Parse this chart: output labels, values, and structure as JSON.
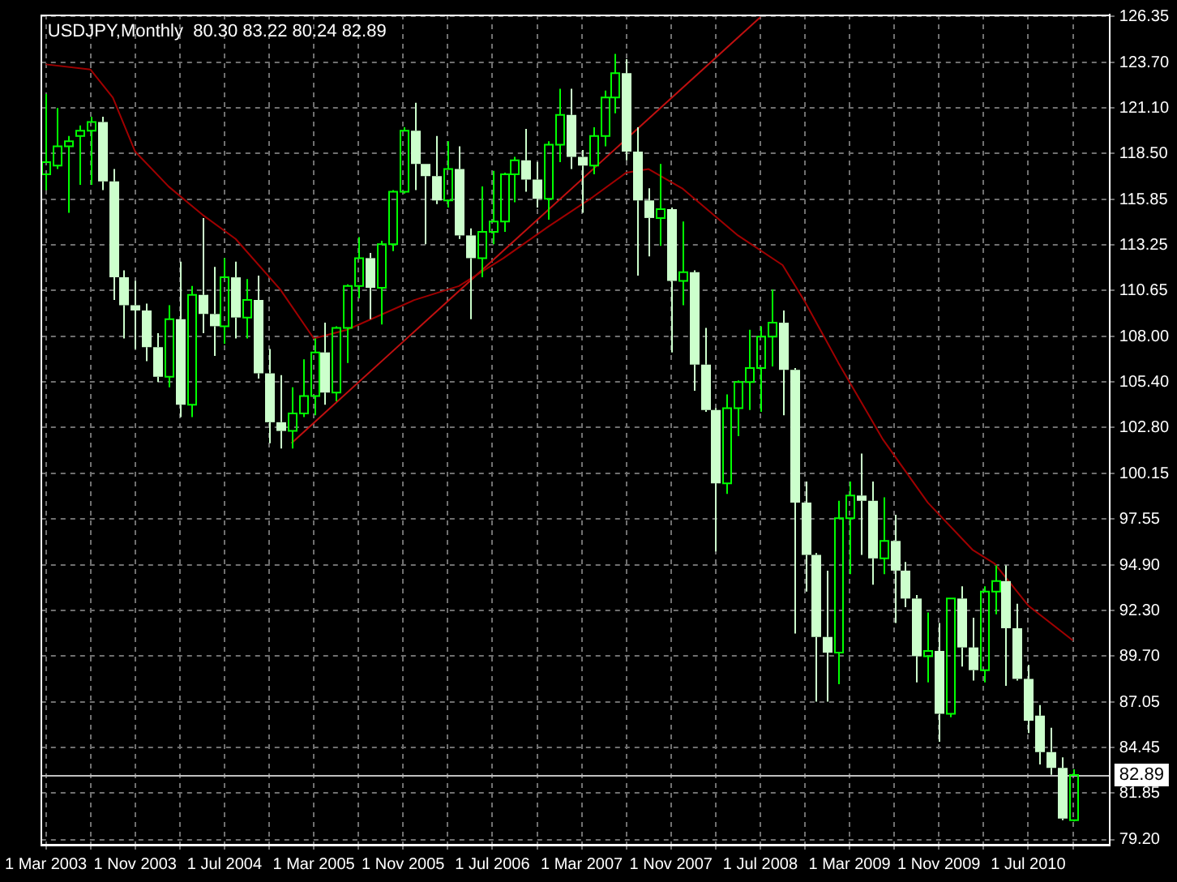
{
  "chart_data": {
    "type": "candlestick",
    "title": "USDJPY,Monthly  80.30 83.22 80.24 82.89",
    "x": [
      "2003-03",
      "2003-04",
      "2003-05",
      "2003-06",
      "2003-07",
      "2003-08",
      "2003-09",
      "2003-10",
      "2003-11",
      "2003-12",
      "2004-01",
      "2004-02",
      "2004-03",
      "2004-04",
      "2004-05",
      "2004-06",
      "2004-07",
      "2004-08",
      "2004-09",
      "2004-10",
      "2004-11",
      "2004-12",
      "2005-01",
      "2005-02",
      "2005-03",
      "2005-04",
      "2005-05",
      "2005-06",
      "2005-07",
      "2005-08",
      "2005-09",
      "2005-10",
      "2005-11",
      "2005-12",
      "2006-01",
      "2006-02",
      "2006-03",
      "2006-04",
      "2006-05",
      "2006-06",
      "2006-07",
      "2006-08",
      "2006-09",
      "2006-10",
      "2006-11",
      "2006-12",
      "2007-01",
      "2007-02",
      "2007-03",
      "2007-04",
      "2007-05",
      "2007-06",
      "2007-07",
      "2007-08",
      "2007-09",
      "2007-10",
      "2007-11",
      "2007-12",
      "2008-01",
      "2008-02",
      "2008-03",
      "2008-04",
      "2008-05",
      "2008-06",
      "2008-07",
      "2008-08",
      "2008-09",
      "2008-10",
      "2008-11",
      "2008-12",
      "2009-01",
      "2009-02",
      "2009-03",
      "2009-04",
      "2009-05",
      "2009-06",
      "2009-07",
      "2009-08",
      "2009-09",
      "2009-10",
      "2009-11",
      "2009-12",
      "2010-01",
      "2010-02",
      "2010-03",
      "2010-04",
      "2010-05",
      "2010-06",
      "2010-07",
      "2010-08",
      "2010-09",
      "2010-10",
      "2010-11"
    ],
    "ohlc": [
      [
        117.3,
        121.9,
        116.4,
        118.0
      ],
      [
        117.8,
        121.1,
        117.6,
        118.9
      ],
      [
        118.9,
        119.5,
        115.1,
        119.2
      ],
      [
        119.5,
        120.1,
        116.7,
        119.8
      ],
      [
        119.8,
        120.6,
        116.7,
        120.3
      ],
      [
        120.3,
        120.6,
        116.4,
        116.9
      ],
      [
        116.9,
        117.6,
        110.1,
        111.4
      ],
      [
        111.4,
        111.8,
        107.9,
        109.8
      ],
      [
        109.8,
        111.2,
        107.3,
        109.5
      ],
      [
        109.5,
        109.9,
        106.6,
        107.4
      ],
      [
        107.4,
        108.2,
        105.4,
        105.7
      ],
      [
        105.7,
        109.8,
        105.1,
        109.0
      ],
      [
        109.0,
        112.3,
        103.4,
        104.1
      ],
      [
        104.1,
        110.9,
        103.4,
        110.4
      ],
      [
        110.4,
        114.8,
        108.2,
        109.3
      ],
      [
        109.3,
        112.0,
        106.9,
        108.6
      ],
      [
        108.6,
        112.5,
        107.6,
        111.4
      ],
      [
        111.4,
        112.3,
        107.9,
        109.1
      ],
      [
        109.1,
        111.3,
        107.9,
        110.1
      ],
      [
        110.1,
        111.5,
        105.6,
        105.9
      ],
      [
        105.9,
        107.3,
        101.9,
        103.1
      ],
      [
        103.1,
        105.8,
        101.6,
        102.6
      ],
      [
        102.6,
        105.1,
        101.6,
        103.6
      ],
      [
        103.6,
        106.7,
        103.4,
        104.6
      ],
      [
        104.6,
        107.9,
        103.5,
        107.1
      ],
      [
        107.1,
        108.8,
        104.1,
        104.8
      ],
      [
        104.8,
        108.6,
        104.3,
        108.5
      ],
      [
        108.5,
        111.0,
        106.5,
        110.9
      ],
      [
        110.9,
        113.7,
        110.2,
        112.5
      ],
      [
        112.5,
        112.8,
        109.0,
        110.8
      ],
      [
        110.8,
        113.5,
        108.7,
        113.3
      ],
      [
        113.3,
        116.4,
        112.9,
        116.3
      ],
      [
        116.3,
        120.0,
        116.2,
        119.8
      ],
      [
        119.8,
        121.4,
        116.4,
        117.9
      ],
      [
        117.9,
        117.9,
        113.3,
        117.2
      ],
      [
        117.2,
        119.5,
        115.6,
        115.8
      ],
      [
        115.8,
        119.2,
        115.4,
        117.6
      ],
      [
        117.6,
        118.9,
        113.6,
        113.8
      ],
      [
        113.8,
        114.2,
        109.0,
        112.5
      ],
      [
        112.5,
        116.6,
        111.4,
        114.0
      ],
      [
        114.0,
        117.5,
        113.3,
        114.6
      ],
      [
        114.6,
        117.4,
        114.0,
        117.3
      ],
      [
        117.3,
        118.3,
        115.7,
        118.1
      ],
      [
        118.1,
        119.9,
        116.3,
        117.0
      ],
      [
        117.0,
        118.0,
        115.4,
        115.9
      ],
      [
        115.9,
        119.2,
        114.7,
        119.0
      ],
      [
        119.0,
        122.2,
        118.0,
        120.7
      ],
      [
        120.7,
        122.2,
        117.6,
        118.3
      ],
      [
        118.3,
        118.7,
        115.1,
        117.8
      ],
      [
        117.8,
        120.0,
        117.3,
        119.5
      ],
      [
        119.5,
        122.1,
        118.9,
        121.7
      ],
      [
        121.7,
        124.2,
        120.8,
        123.1
      ],
      [
        123.1,
        123.9,
        118.1,
        118.6
      ],
      [
        118.6,
        120.0,
        111.5,
        115.8
      ],
      [
        115.8,
        116.5,
        112.6,
        114.8
      ],
      [
        114.8,
        117.9,
        113.2,
        115.3
      ],
      [
        115.3,
        115.4,
        107.1,
        111.2
      ],
      [
        111.2,
        114.6,
        109.8,
        111.7
      ],
      [
        111.7,
        111.8,
        104.9,
        106.4
      ],
      [
        106.4,
        108.5,
        103.7,
        103.8
      ],
      [
        103.8,
        103.9,
        95.7,
        99.6
      ],
      [
        99.6,
        104.7,
        99.0,
        103.9
      ],
      [
        103.9,
        105.5,
        102.3,
        105.4
      ],
      [
        105.4,
        108.4,
        103.8,
        106.2
      ],
      [
        106.2,
        108.6,
        103.7,
        108.0
      ],
      [
        108.0,
        110.7,
        106.3,
        108.8
      ],
      [
        108.8,
        109.5,
        103.5,
        106.1
      ],
      [
        106.1,
        106.2,
        91.0,
        98.5
      ],
      [
        98.5,
        99.7,
        93.4,
        95.5
      ],
      [
        95.5,
        95.6,
        87.1,
        90.8
      ],
      [
        90.8,
        94.6,
        87.1,
        89.9
      ],
      [
        89.9,
        98.6,
        88.1,
        97.6
      ],
      [
        97.6,
        99.7,
        94.4,
        98.9
      ],
      [
        98.9,
        101.3,
        95.5,
        98.6
      ],
      [
        98.6,
        99.7,
        93.8,
        95.3
      ],
      [
        95.3,
        98.8,
        94.4,
        96.3
      ],
      [
        96.3,
        97.8,
        91.6,
        94.6
      ],
      [
        94.6,
        95.1,
        92.5,
        93.0
      ],
      [
        93.0,
        93.2,
        88.2,
        89.7
      ],
      [
        89.7,
        92.2,
        88.2,
        90.0
      ],
      [
        90.0,
        91.6,
        84.8,
        86.4
      ],
      [
        86.4,
        93.0,
        86.2,
        93.0
      ],
      [
        93.0,
        93.7,
        89.1,
        90.2
      ],
      [
        90.2,
        91.9,
        88.3,
        88.9
      ],
      [
        88.9,
        93.7,
        88.2,
        93.4
      ],
      [
        93.4,
        94.9,
        92.1,
        94.0
      ],
      [
        94.0,
        94.9,
        88.0,
        91.3
      ],
      [
        91.3,
        92.7,
        88.3,
        88.4
      ],
      [
        88.4,
        89.2,
        85.3,
        86.0
      ],
      [
        86.3,
        86.9,
        83.5,
        84.2
      ],
      [
        84.2,
        85.6,
        82.9,
        83.3
      ],
      [
        83.3,
        83.9,
        80.3,
        80.4
      ],
      [
        80.3,
        83.22,
        80.24,
        82.89
      ]
    ],
    "colors": [
      "#00ff00",
      "#00ff00",
      "#00ff00",
      "#00ff00",
      "#00ff00",
      "#ccffcc",
      "#ccffcc",
      "#ccffcc",
      "#ccffcc",
      "#ccffcc",
      "#ccffcc",
      "#00ff00",
      "#ccffcc",
      "#00ff00",
      "#ccffcc",
      "#ccffcc",
      "#00ff00",
      "#ccffcc",
      "#00ff00",
      "#ccffcc",
      "#ccffcc",
      "#ccffcc",
      "#00ff00",
      "#00ff00",
      "#00ff00",
      "#ccffcc",
      "#00ff00",
      "#00ff00",
      "#00ff00",
      "#ccffcc",
      "#00ff00",
      "#00ff00",
      "#00ff00",
      "#ccffcc",
      "#ccffcc",
      "#ccffcc",
      "#00ff00",
      "#ccffcc",
      "#ccffcc",
      "#00ff00",
      "#00ff00",
      "#00ff00",
      "#00ff00",
      "#ccffcc",
      "#ccffcc",
      "#00ff00",
      "#00ff00",
      "#ccffcc",
      "#ccffcc",
      "#00ff00",
      "#00ff00",
      "#00ff00",
      "#ccffcc",
      "#ccffcc",
      "#ccffcc",
      "#00ff00",
      "#ccffcc",
      "#00ff00",
      "#ccffcc",
      "#ccffcc",
      "#ccffcc",
      "#00ff00",
      "#00ff00",
      "#00ff00",
      "#00ff00",
      "#00ff00",
      "#ccffcc",
      "#ccffcc",
      "#ccffcc",
      "#ccffcc",
      "#ccffcc",
      "#00ff00",
      "#00ff00",
      "#ccffcc",
      "#ccffcc",
      "#00ff00",
      "#ccffcc",
      "#ccffcc",
      "#ccffcc",
      "#00ff00",
      "#ccffcc",
      "#00ff00",
      "#ccffcc",
      "#ccffcc",
      "#00ff00",
      "#00ff00",
      "#ccffcc",
      "#ccffcc",
      "#ccffcc",
      "#ccffcc",
      "#ccffcc",
      "#ccffcc",
      "#00ff00"
    ],
    "series": [
      {
        "type": "line",
        "color": "#a00000",
        "x": [
          "2003-03",
          "2003-07",
          "2003-09",
          "2003-11",
          "2004-02",
          "2004-05",
          "2004-08",
          "2004-12",
          "2005-03",
          "2005-06",
          "2005-12",
          "2006-04",
          "2006-08",
          "2006-12",
          "2007-04",
          "2007-07",
          "2007-09",
          "2007-12",
          "2008-05",
          "2008-09",
          "2008-11",
          "2009-02",
          "2009-06",
          "2009-10",
          "2010-02",
          "2010-04",
          "2010-07",
          "2010-11"
        ],
        "values": [
          123.6,
          123.3,
          121.7,
          118.6,
          116.6,
          115.0,
          113.6,
          110.7,
          107.9,
          108.4,
          110.1,
          110.9,
          112.5,
          114.3,
          116.0,
          117.4,
          117.6,
          116.5,
          113.8,
          112.1,
          110.0,
          106.5,
          102.1,
          98.5,
          95.8,
          95.0,
          92.6,
          90.6
        ]
      },
      {
        "type": "line",
        "color": "#c01010",
        "x": [
          "2005-01",
          "2008-07"
        ],
        "values": [
          101.9,
          126.3
        ]
      }
    ],
    "xlim": [
      "2003-02-19",
      "2011-02-10"
    ],
    "xticks": [
      {
        "value": "2003-03",
        "label": "1 Mar 2003"
      },
      {
        "value": "2003-07",
        "label": null
      },
      {
        "value": "2003-11",
        "label": "1 Nov 2003"
      },
      {
        "value": "2004-03",
        "label": null
      },
      {
        "value": "2004-07",
        "label": "1 Jul 2004"
      },
      {
        "value": "2004-11",
        "label": null
      },
      {
        "value": "2005-03",
        "label": "1 Mar 2005"
      },
      {
        "value": "2005-07",
        "label": null
      },
      {
        "value": "2005-11",
        "label": "1 Nov 2005"
      },
      {
        "value": "2006-03",
        "label": null
      },
      {
        "value": "2006-07",
        "label": "1 Jul 2006"
      },
      {
        "value": "2006-11",
        "label": null
      },
      {
        "value": "2007-03",
        "label": "1 Mar 2007"
      },
      {
        "value": "2007-07",
        "label": null
      },
      {
        "value": "2007-11",
        "label": "1 Nov 2007"
      },
      {
        "value": "2008-03",
        "label": null
      },
      {
        "value": "2008-07",
        "label": "1 Jul 2008"
      },
      {
        "value": "2008-11",
        "label": null
      },
      {
        "value": "2009-03",
        "label": "1 Mar 2009"
      },
      {
        "value": "2009-07",
        "label": null
      },
      {
        "value": "2009-11",
        "label": "1 Nov 2009"
      },
      {
        "value": "2010-03",
        "label": null
      },
      {
        "value": "2010-07",
        "label": "1 Jul 2010"
      },
      {
        "value": "2010-11",
        "label": null
      }
    ],
    "ylim": [
      78.9,
      126.45
    ],
    "yticks": [
      126.35,
      {
        "value": 123.7,
        "label": "123.70"
      },
      {
        "value": 121.1,
        "label": "121.10"
      },
      {
        "value": 118.5,
        "label": "118.50"
      },
      115.85,
      113.25,
      110.65,
      {
        "value": 108,
        "label": "108.00"
      },
      {
        "value": 105.4,
        "label": "105.40"
      },
      {
        "value": 102.8,
        "label": "102.80"
      },
      100.15,
      97.55,
      {
        "value": 94.9,
        "label": "94.90"
      },
      {
        "value": 92.3,
        "label": "92.30"
      },
      {
        "value": 89.7,
        "label": "89.70"
      },
      87.05,
      84.45,
      81.85,
      {
        "value": 79.2,
        "label": "79.20"
      }
    ],
    "ref_lines": [
      {
        "axis": "y",
        "value": 82.89,
        "label": "82.89",
        "color": "#c0c0c0"
      }
    ],
    "grid": true,
    "legend": false,
    "marker": "none",
    "line_style": "solid"
  }
}
